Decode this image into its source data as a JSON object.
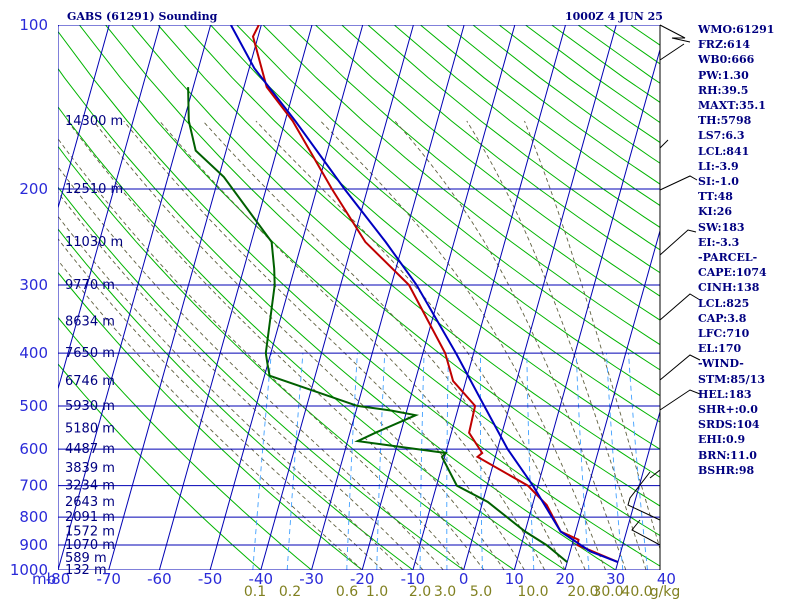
{
  "title": "GABS (61291) Sounding",
  "timestamp": "1000Z  4 JUN 25",
  "units": {
    "pressure": "mb",
    "mixing_ratio": "g/kg"
  },
  "colors": {
    "background": "#ffffff",
    "grid": "#0000b4",
    "dry_adiabat": "#00b400",
    "moist_adiabat": "#606040",
    "mixing_ratio": "#40a0ff",
    "temperature": "#c00000",
    "dewpoint": "#006000",
    "parcel": "#0000c0",
    "text": "#000080"
  },
  "stats": [
    "WMO:61291",
    "FRZ:614",
    "WB0:666",
    "PW:1.30",
    "RH:39.5",
    "MAXT:35.1",
    "TH:5798",
    "LS7:6.3",
    "LCL:841",
    "LI:-3.9",
    "SI:-1.0",
    "TT:48",
    "KI:26",
    "SW:183",
    "EI:-3.3",
    "-PARCEL-",
    "CAPE:1074",
    "CINH:138",
    "LCL:825",
    "CAP:3.8",
    "LFC:710",
    "EL:170",
    "-WIND-",
    "STM:85/13",
    "HEL:183",
    "SHR+:0.0",
    "SRDS:104",
    "EHI:0.9",
    "BRN:11.0",
    "BSHR:98"
  ],
  "chart_data": {
    "type": "line",
    "x_axis": {
      "label": "mb",
      "ticks": [
        -80,
        -70,
        -60,
        -50,
        -40,
        -30,
        -20,
        -10,
        0,
        10,
        20,
        30,
        40
      ],
      "range": [
        -80,
        40
      ]
    },
    "y_axis": {
      "scale": "log",
      "ticks": [
        100,
        200,
        300,
        400,
        500,
        600,
        700,
        800,
        900,
        1000
      ],
      "range": [
        100,
        1000
      ],
      "inverted": true
    },
    "mixing_ratio_labels": [
      "0.1",
      "0.2",
      "0.6",
      "1.0",
      "2.0",
      "3.0",
      "5.0",
      "10.0",
      "20.0",
      "30.0",
      "40.0",
      "g/kg"
    ],
    "height_labels": [
      {
        "text": "14300 m",
        "p": 150
      },
      {
        "text": "12510 m",
        "p": 200
      },
      {
        "text": "11030 m",
        "p": 250
      },
      {
        "text": "9770 m",
        "p": 300
      },
      {
        "text": "8634 m",
        "p": 350
      },
      {
        "text": "7650 m",
        "p": 400
      },
      {
        "text": "6746 m",
        "p": 450
      },
      {
        "text": "5930 m",
        "p": 500
      },
      {
        "text": "5180 m",
        "p": 550
      },
      {
        "text": "4487 m",
        "p": 600
      },
      {
        "text": "3839 m",
        "p": 650
      },
      {
        "text": "3234 m",
        "p": 700
      },
      {
        "text": "2643 m",
        "p": 750
      },
      {
        "text": "2091 m",
        "p": 800
      },
      {
        "text": "1572 m",
        "p": 850
      },
      {
        "text": "1070 m",
        "p": 900
      },
      {
        "text": "589 m",
        "p": 950
      },
      {
        "text": "132 m",
        "p": 1000
      }
    ],
    "grid": true,
    "series": [
      {
        "name": "Temperature",
        "points": [
          [
            967,
            30.0
          ],
          [
            900,
            21.1
          ],
          [
            880,
            21.0
          ],
          [
            850,
            17.0
          ],
          [
            760,
            12.8
          ],
          [
            700,
            8.0
          ],
          [
            620,
            -3.5
          ],
          [
            610,
            -2.8
          ],
          [
            560,
            -6.5
          ],
          [
            500,
            -6.8
          ],
          [
            450,
            -12.5
          ],
          [
            400,
            -15.6
          ],
          [
            300,
            -26.5
          ],
          [
            250,
            -37.5
          ],
          [
            200,
            -47.0
          ],
          [
            150,
            -58.5
          ],
          [
            130,
            -65.5
          ],
          [
            118,
            -68.0
          ],
          [
            105,
            -71.0
          ],
          [
            100,
            -70.5
          ]
        ]
      },
      {
        "name": "Dewpoint",
        "points": [
          [
            967,
            20.0
          ],
          [
            900,
            15.0
          ],
          [
            850,
            10.0
          ],
          [
            750,
            1.0
          ],
          [
            700,
            -6.0
          ],
          [
            620,
            -10.5
          ],
          [
            610,
            -10.0
          ],
          [
            580,
            -28.0
          ],
          [
            560,
            -25.0
          ],
          [
            520,
            -18.0
          ],
          [
            510,
            -23.0
          ],
          [
            500,
            -30.0
          ],
          [
            440,
            -49.0
          ],
          [
            420,
            -50.0
          ],
          [
            400,
            -51.0
          ],
          [
            300,
            -53.0
          ],
          [
            280,
            -54.0
          ],
          [
            250,
            -56.0
          ],
          [
            190,
            -69.0
          ],
          [
            170,
            -76.0
          ],
          [
            150,
            -79.0
          ],
          [
            130,
            -81.0
          ]
        ]
      },
      {
        "name": "Parcel",
        "points": [
          [
            967,
            30.0
          ],
          [
            925,
            24.0
          ],
          [
            850,
            17.0
          ],
          [
            700,
            9.0
          ],
          [
            600,
            2.0
          ],
          [
            500,
            -5.0
          ],
          [
            400,
            -13.5
          ],
          [
            300,
            -25.0
          ],
          [
            250,
            -33.5
          ],
          [
            200,
            -44.5
          ],
          [
            150,
            -58.0
          ],
          [
            120,
            -69.0
          ],
          [
            100,
            -76.0
          ]
        ]
      }
    ]
  }
}
